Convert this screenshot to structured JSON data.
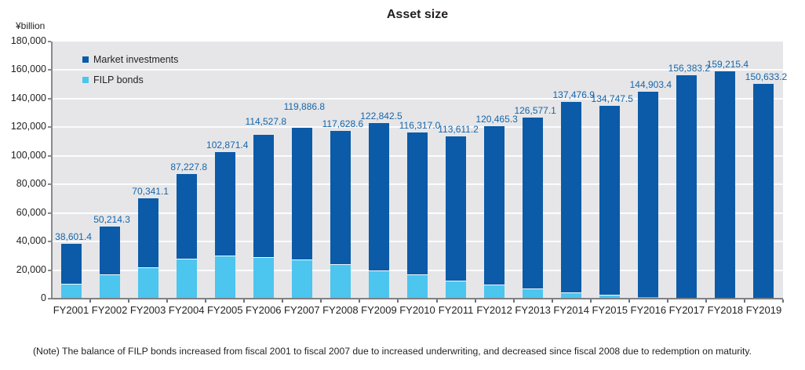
{
  "page": {
    "title": "Asset size",
    "unit_label": "¥billion",
    "note": "(Note) The balance of FILP bonds increased from fiscal 2001 to fiscal 2007 due to increased underwriting, and decreased since fiscal 2008 due to redemption on maturity."
  },
  "legend": {
    "items": [
      {
        "label": "Market investments",
        "color": "#0b5ba8"
      },
      {
        "label": "FILP bonds",
        "color": "#4cc5ef"
      }
    ]
  },
  "chart_data": {
    "type": "bar",
    "stacked": true,
    "title": "Asset size",
    "ylabel": "¥billion",
    "xlabel": "",
    "ylim": [
      0,
      180000
    ],
    "ytick_step": 20000,
    "ytick_labels": [
      "0",
      "20,000",
      "40,000",
      "60,000",
      "80,000",
      "100,000",
      "120,000",
      "140,000",
      "160,000",
      "180,000"
    ],
    "grid": "horizontal white lines on light-gray plot background",
    "legend_position": "top-left inside plot",
    "categories": [
      "FY2001",
      "FY2002",
      "FY2003",
      "FY2004",
      "FY2005",
      "FY2006",
      "FY2007",
      "FY2008",
      "FY2009",
      "FY2010",
      "FY2011",
      "FY2012",
      "FY2013",
      "FY2014",
      "FY2015",
      "FY2016",
      "FY2017",
      "FY2018",
      "FY2019"
    ],
    "totals": [
      38601.4,
      50214.3,
      70341.1,
      87227.8,
      102871.4,
      114527.8,
      119886.8,
      117628.6,
      122842.5,
      116317.0,
      113611.2,
      120465.3,
      126577.1,
      137476.9,
      134747.5,
      144903.4,
      156383.2,
      159215.4,
      150633.2
    ],
    "total_labels": [
      "38,601.4",
      "50,214.3",
      "70,341.1",
      "87,227.8",
      "102,871.4",
      "114,527.8",
      "119,886.8",
      "117,628.6",
      "122,842.5",
      "116,317.0",
      "113,611.2",
      "120,465.3",
      "126,577.1",
      "137,476.9",
      "134,747.5",
      "144,903.4",
      "156,383.2",
      "159,215.4",
      "150,633.2"
    ],
    "series": [
      {
        "name": "Market investments",
        "color": "#0b5ba8",
        "values": [
          28101.4,
          33214.3,
          48341.1,
          59327.8,
          72571.4,
          85627.8,
          92286.8,
          93328.6,
          103042.5,
          99317.0,
          101211.2,
          110365.3,
          119677.1,
          133276.9,
          132047.5,
          143703.4,
          155983.2,
          158965.4,
          150483.2
        ],
        "note": "derived as labeled total minus estimated FILP bonds"
      },
      {
        "name": "FILP bonds",
        "color": "#4cc5ef",
        "values": [
          10500,
          17000,
          22000,
          27900,
          30300,
          28900,
          27600,
          24300,
          19800,
          17000,
          12400,
          10100,
          6900,
          4200,
          2700,
          1200,
          400,
          250,
          150
        ],
        "note": "estimated from gridlines (not labeled in chart)"
      }
    ],
    "value_label_color": "#1566ab"
  }
}
